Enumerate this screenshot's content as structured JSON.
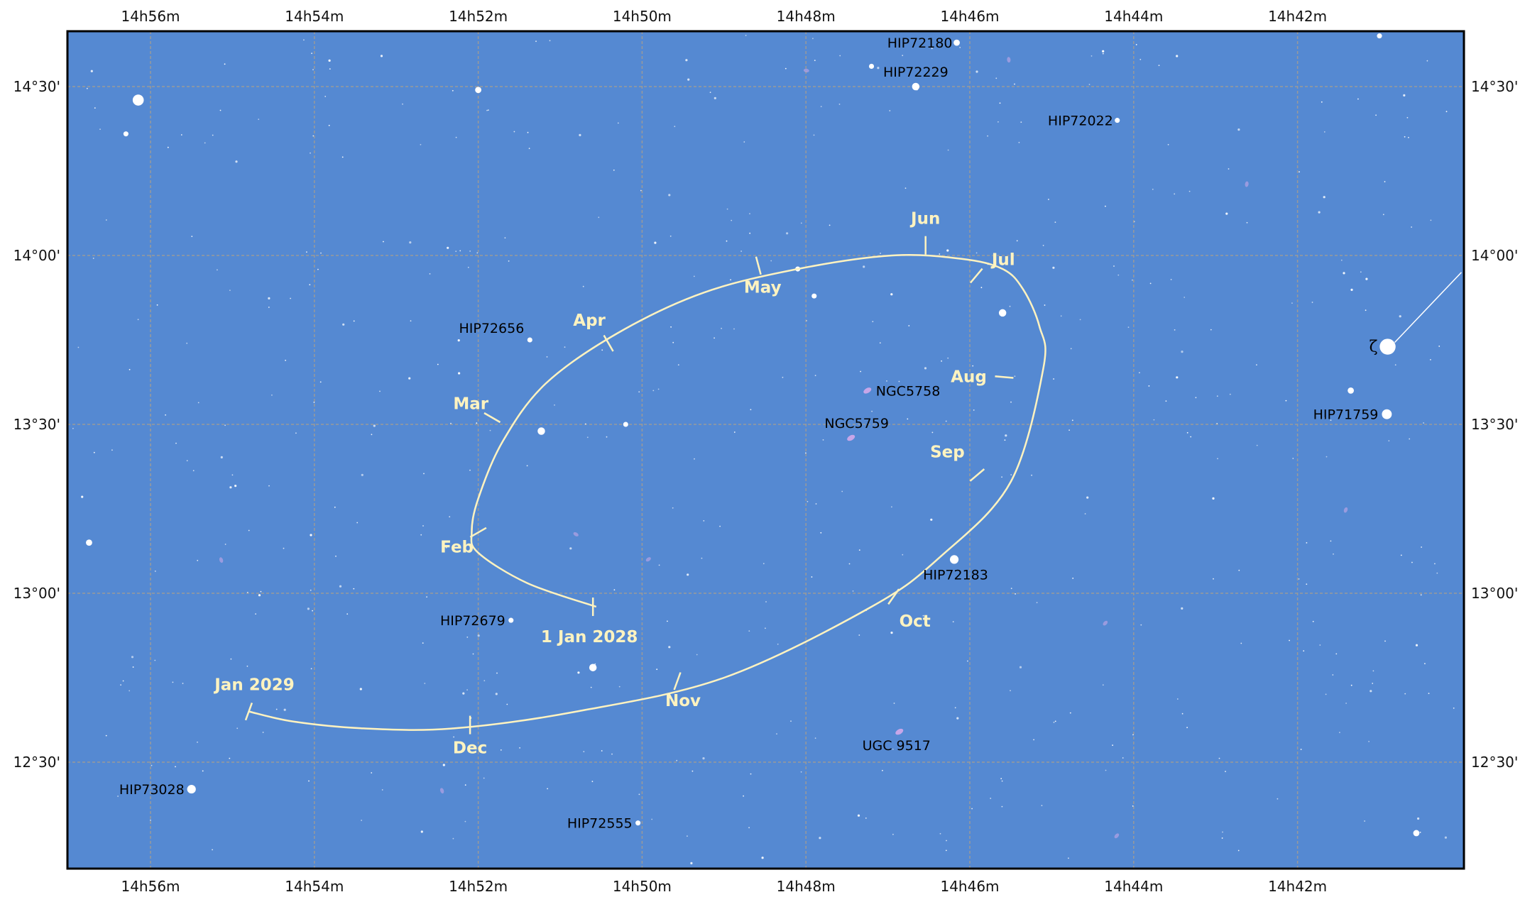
{
  "colors": {
    "sky": "#5589d2",
    "path": "#fff3c0",
    "grid": "#9a9a9a",
    "frame": "#000000",
    "star": "#ffffff",
    "galaxy": "#c7a6e8"
  },
  "chart_data": {
    "type": "scatter",
    "projection": "RA/Dec finder chart",
    "ra_ticks": [
      "14h56m",
      "14h54m",
      "14h52m",
      "14h50m",
      "14h48m",
      "14h46m",
      "14h44m",
      "14h42m"
    ],
    "dec_ticks": [
      "14°30'",
      "14°00'",
      "13°30'",
      "13°00'",
      "12°30'"
    ],
    "ra_tick_minutes": [
      56,
      54,
      52,
      50,
      48,
      46,
      44,
      42
    ],
    "dec_tick_degrees": [
      14.5,
      14.0,
      13.5,
      13.0,
      12.5
    ],
    "ra_range_min": [
      57.2,
      40.2
    ],
    "dec_range_deg": [
      12.2,
      14.67
    ],
    "path": {
      "series": "ephemeris track 1 Jan 2028 – Jan 2029",
      "points": [
        {
          "ra": 50.56,
          "dec": 12.96
        },
        {
          "ra": 51.4,
          "dec": 13.03
        },
        {
          "ra": 52.0,
          "dec": 13.12
        },
        {
          "ra": 52.08,
          "dec": 13.18
        },
        {
          "ra": 52.0,
          "dec": 13.28
        },
        {
          "ra": 51.7,
          "dec": 13.45
        },
        {
          "ra": 51.18,
          "dec": 13.62
        },
        {
          "ra": 50.3,
          "dec": 13.77
        },
        {
          "ra": 49.25,
          "dec": 13.89
        },
        {
          "ra": 48.1,
          "dec": 13.96
        },
        {
          "ra": 46.95,
          "dec": 14.0
        },
        {
          "ra": 46.1,
          "dec": 13.99
        },
        {
          "ra": 45.6,
          "dec": 13.96
        },
        {
          "ra": 45.35,
          "dec": 13.9
        },
        {
          "ra": 45.15,
          "dec": 13.79
        },
        {
          "ra": 45.1,
          "dec": 13.67
        },
        {
          "ra": 45.5,
          "dec": 13.33
        },
        {
          "ra": 46.35,
          "dec": 13.11
        },
        {
          "ra": 47.2,
          "dec": 12.96
        },
        {
          "ra": 49.0,
          "dec": 12.75
        },
        {
          "ra": 50.8,
          "dec": 12.65
        },
        {
          "ra": 52.3,
          "dec": 12.6
        },
        {
          "ra": 53.4,
          "dec": 12.6
        },
        {
          "ra": 54.25,
          "dec": 12.62
        },
        {
          "ra": 54.8,
          "dec": 12.65
        }
      ],
      "months": [
        {
          "label": "1 Jan 2028",
          "ra": 50.6,
          "dec": 12.96,
          "tick_angle": 90,
          "anchor": "middle",
          "dx": -5,
          "dy": 50
        },
        {
          "label": "Feb",
          "ra": 52.0,
          "dec": 13.18,
          "tick_angle": -30,
          "anchor": "middle",
          "dx": -30,
          "dy": 28
        },
        {
          "label": "Mar",
          "ra": 51.83,
          "dec": 13.52,
          "tick_angle": 30,
          "anchor": "middle",
          "dx": -30,
          "dy": -12
        },
        {
          "label": "Apr",
          "ra": 50.41,
          "dec": 13.74,
          "tick_angle": 60,
          "anchor": "middle",
          "dx": -27,
          "dy": -25
        },
        {
          "label": "May",
          "ra": 48.58,
          "dec": 13.97,
          "tick_angle": 75,
          "anchor": "middle",
          "dx": 6,
          "dy": 38
        },
        {
          "label": "Jun",
          "ra": 46.54,
          "dec": 14.03,
          "tick_angle": 90,
          "anchor": "middle",
          "dx": 0,
          "dy": -30
        },
        {
          "label": "Jul",
          "ra": 45.92,
          "dec": 13.94,
          "tick_angle": -50,
          "anchor": "middle",
          "dx": 38,
          "dy": -15
        },
        {
          "label": "Aug",
          "ra": 45.58,
          "dec": 13.64,
          "tick_angle": 5,
          "anchor": "middle",
          "dx": -50,
          "dy": 7
        },
        {
          "label": "Sep",
          "ra": 45.91,
          "dec": 13.35,
          "tick_angle": -40,
          "anchor": "middle",
          "dx": -42,
          "dy": -25
        },
        {
          "label": "Oct",
          "ra": 46.93,
          "dec": 12.99,
          "tick_angle": -55,
          "anchor": "middle",
          "dx": 30,
          "dy": 42
        },
        {
          "label": "Nov",
          "ra": 49.57,
          "dec": 12.74,
          "tick_angle": -70,
          "anchor": "middle",
          "dx": 8,
          "dy": 35
        },
        {
          "label": "Dec",
          "ra": 52.1,
          "dec": 12.61,
          "tick_angle": -90,
          "anchor": "middle",
          "dx": 0,
          "dy": 40
        },
        {
          "label": "Jan 2029",
          "ra": 54.8,
          "dec": 12.65,
          "tick_angle": -70,
          "anchor": "middle",
          "dx": 8,
          "dy": -30
        }
      ]
    },
    "labeled_stars": [
      {
        "label": "HIP72180",
        "ra": 46.16,
        "dec": 14.63,
        "mag": 4,
        "anchor": "end",
        "dx": -6,
        "dy": 7
      },
      {
        "label": "HIP72229",
        "ra": 46.66,
        "dec": 14.5,
        "mag": 5,
        "anchor": "middle",
        "dx": 0,
        "dy": -14
      },
      {
        "label": "HIP72022",
        "ra": 44.2,
        "dec": 14.4,
        "mag": 3,
        "anchor": "end",
        "dx": -6,
        "dy": 7
      },
      {
        "label": "HIP72656",
        "ra": 51.37,
        "dec": 13.75,
        "mag": 3,
        "anchor": "end",
        "dx": -8,
        "dy": -10
      },
      {
        "label": "HIP71759",
        "ra": 40.91,
        "dec": 13.53,
        "mag": 7,
        "anchor": "end",
        "dx": -12,
        "dy": 7
      },
      {
        "label": "HIP72183",
        "ra": 46.19,
        "dec": 13.1,
        "mag": 6,
        "anchor": "start",
        "dx": -44,
        "dy": 28
      },
      {
        "label": "HIP72679",
        "ra": 51.6,
        "dec": 12.92,
        "mag": 3,
        "anchor": "end",
        "dx": -8,
        "dy": 7
      },
      {
        "label": "HIP73028",
        "ra": 55.5,
        "dec": 12.42,
        "mag": 6,
        "anchor": "end",
        "dx": -10,
        "dy": 7
      },
      {
        "label": "HIP72555",
        "ra": 50.05,
        "dec": 12.32,
        "mag": 3,
        "anchor": "end",
        "dx": -8,
        "dy": 7
      }
    ],
    "named_star": {
      "label": "ζ",
      "ra": 40.9,
      "dec": 13.73,
      "mag": 12,
      "arrow_to_ra": 40.0,
      "arrow_to_dec": 13.95
    },
    "galaxies": [
      {
        "label": "NGC5758",
        "ra": 47.25,
        "dec": 13.6,
        "anchor": "start",
        "dx": 12,
        "dy": 7
      },
      {
        "label": "NGC5759",
        "ra": 47.45,
        "dec": 13.46,
        "anchor": "middle",
        "dx": 8,
        "dy": -14
      },
      {
        "label": "UGC 9517",
        "ra": 46.86,
        "dec": 12.59,
        "anchor": "middle",
        "dx": -4,
        "dy": 26
      }
    ],
    "unlabeled_bright_stars": [
      {
        "ra": 56.15,
        "dec": 14.46,
        "mag": 8
      },
      {
        "ra": 52.0,
        "dec": 14.49,
        "mag": 4
      },
      {
        "ra": 45.6,
        "dec": 13.83,
        "mag": 5
      },
      {
        "ra": 51.23,
        "dec": 13.48,
        "mag": 5
      },
      {
        "ra": 50.6,
        "dec": 12.78,
        "mag": 5
      },
      {
        "ra": 56.75,
        "dec": 13.15,
        "mag": 4
      },
      {
        "ra": 41.35,
        "dec": 13.6,
        "mag": 4
      },
      {
        "ra": 40.55,
        "dec": 12.29,
        "mag": 4
      },
      {
        "ra": 56.3,
        "dec": 14.36,
        "mag": 3
      },
      {
        "ra": 50.2,
        "dec": 13.5,
        "mag": 3
      },
      {
        "ra": 47.9,
        "dec": 13.88,
        "mag": 3
      },
      {
        "ra": 48.1,
        "dec": 13.96,
        "mag": 3
      },
      {
        "ra": 41.0,
        "dec": 14.65,
        "mag": 3
      },
      {
        "ra": 47.2,
        "dec": 14.56,
        "mag": 3
      }
    ]
  }
}
